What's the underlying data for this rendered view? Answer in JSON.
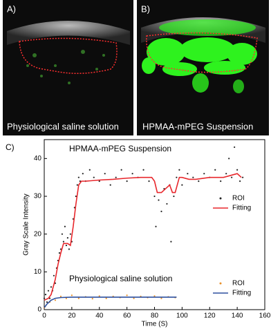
{
  "panels": [
    {
      "label": "A)",
      "caption": "Physiological saline solution"
    },
    {
      "label": "B)",
      "caption": "HPMAA-mPEG Suspension"
    }
  ],
  "chart_data": {
    "type": "line",
    "label": "C)",
    "xlabel": "Time (S)",
    "ylabel": "Gray Scale Intensity",
    "annotations": [
      "HPMAA-mPEG Suspension",
      "Physiological saline solution"
    ],
    "xlim": [
      0,
      160
    ],
    "ylim": [
      0,
      45
    ],
    "xticks": [
      0,
      20,
      40,
      60,
      80,
      100,
      120,
      140,
      160
    ],
    "yticks": [
      0,
      10,
      20,
      30,
      40
    ],
    "series": [
      {
        "name": "ROI",
        "color": "#222222",
        "mode": "markers",
        "x": [
          0,
          1,
          2,
          3,
          4,
          5,
          6,
          7,
          8,
          9,
          10,
          11,
          12,
          13,
          14,
          15,
          16,
          17,
          18,
          19,
          20,
          21,
          22,
          23,
          24,
          25,
          26,
          28,
          30,
          33,
          36,
          40,
          44,
          48,
          52,
          56,
          60,
          64,
          68,
          72,
          76,
          80,
          81,
          83,
          85,
          87,
          89,
          91,
          92,
          94,
          96,
          98,
          100,
          104,
          108,
          112,
          116,
          120,
          124,
          128,
          132,
          134,
          136,
          138,
          140,
          142,
          144
        ],
        "values": [
          3,
          4,
          2,
          5,
          3,
          6,
          5,
          9,
          7,
          11,
          13,
          15,
          16,
          20,
          18,
          22,
          17,
          19,
          16,
          20,
          18,
          24,
          27,
          30,
          33,
          35,
          34,
          36,
          34,
          37,
          35,
          34,
          36,
          33,
          35,
          37,
          34,
          36,
          35,
          37,
          34,
          30,
          22,
          29,
          26,
          32,
          28,
          33,
          18,
          30,
          35,
          37,
          33,
          36,
          35,
          34,
          36,
          35,
          37,
          34,
          36,
          40,
          35,
          43,
          37,
          34,
          35
        ]
      },
      {
        "name": "Fitting",
        "color": "#e8262b",
        "mode": "line",
        "x": [
          0,
          3,
          5,
          8,
          10,
          12,
          14,
          17,
          19,
          21,
          23,
          25,
          27,
          30,
          40,
          50,
          60,
          70,
          78,
          80,
          82,
          85,
          88,
          91,
          93,
          95,
          98,
          100,
          105,
          110,
          120,
          130,
          135,
          140,
          143
        ],
        "values": [
          2.5,
          3,
          4,
          8,
          12,
          15,
          17.5,
          17.5,
          17,
          22,
          28,
          33,
          34,
          34,
          34.3,
          34.5,
          34.8,
          35,
          35,
          34,
          31,
          31,
          32,
          33,
          31,
          31,
          35,
          35,
          34.5,
          34.5,
          35,
          35,
          35.5,
          36,
          35
        ]
      },
      {
        "name": "ROI",
        "color": "#e8902a",
        "mode": "markers",
        "x": [
          0,
          4,
          8,
          12,
          16,
          20,
          25,
          30,
          35,
          40,
          45,
          50,
          55,
          60,
          65,
          70,
          75,
          80,
          85,
          90,
          95
        ],
        "values": [
          0.5,
          2,
          2.5,
          3.5,
          3,
          3.8,
          3,
          3.4,
          2.9,
          3.6,
          3,
          3.5,
          3.2,
          3.8,
          3,
          3.5,
          3.2,
          3.6,
          3,
          3.4,
          3.2
        ]
      },
      {
        "name": "Fitting",
        "color": "#2b4f9e",
        "mode": "line",
        "x": [
          0,
          2,
          5,
          8,
          12,
          20,
          40,
          60,
          80,
          96
        ],
        "values": [
          0.5,
          1.5,
          2.5,
          3,
          3.2,
          3.3,
          3.3,
          3.3,
          3.3,
          3.3
        ]
      }
    ]
  }
}
